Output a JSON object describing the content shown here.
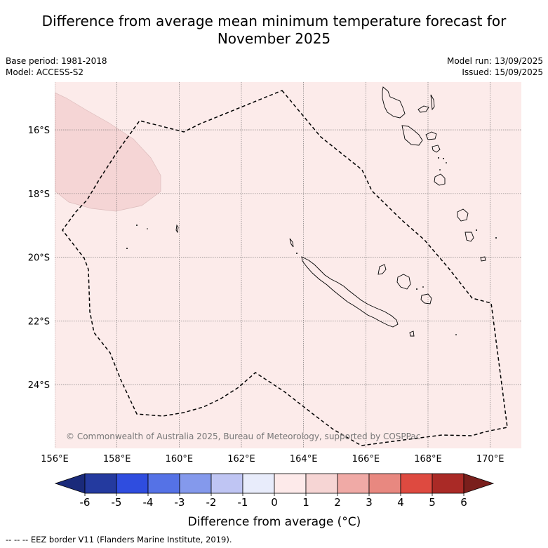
{
  "title_line1": "Difference from average mean minimum temperature forecast for",
  "title_line2": "November 2025",
  "meta": {
    "base_period": "Base period: 1981-2018",
    "model": "Model: ACCESS-S2",
    "model_run": "Model run: 13/09/2025",
    "issued": "Issued: 15/09/2025"
  },
  "map": {
    "lon_range": [
      156,
      171
    ],
    "lat_range": [
      -26.0,
      -14.5
    ],
    "lon_ticks": [
      {
        "value": 156,
        "label": "156°E"
      },
      {
        "value": 158,
        "label": "158°E"
      },
      {
        "value": 160,
        "label": "160°E"
      },
      {
        "value": 162,
        "label": "162°E"
      },
      {
        "value": 164,
        "label": "164°E"
      },
      {
        "value": 166,
        "label": "166°E"
      },
      {
        "value": 168,
        "label": "168°E"
      },
      {
        "value": 170,
        "label": "170°E"
      }
    ],
    "lat_ticks": [
      {
        "value": -16,
        "label": "16°S"
      },
      {
        "value": -18,
        "label": "18°S"
      },
      {
        "value": -20,
        "label": "20°S"
      },
      {
        "value": -22,
        "label": "22°S"
      },
      {
        "value": -24,
        "label": "24°S"
      }
    ],
    "background_color": "#fcebea",
    "anomaly_patch_color": "#f5d5d5",
    "copyright": "© Commonwealth of Australia 2025, Bureau of Meteorology, supported by COSPPac"
  },
  "colorbar": {
    "ticks": [
      "-6",
      "-5",
      "-4",
      "-3",
      "-2",
      "-1",
      "0",
      "1",
      "2",
      "3",
      "4",
      "5",
      "6"
    ],
    "colors": [
      "#243a9f",
      "#2f4ddf",
      "#5572e6",
      "#8499ec",
      "#bfc5f3",
      "#e8ecfb",
      "#fdeaea",
      "#f6d5d4",
      "#f0aaa6",
      "#e88880",
      "#de4a40",
      "#aa2a26"
    ],
    "under_color": "#1a2a7a",
    "over_color": "#7a1f1c",
    "label": "Difference from average (°C)"
  },
  "footer": "-- -- -- EEZ border V11 (Flanders Marine Institute, 2019)."
}
